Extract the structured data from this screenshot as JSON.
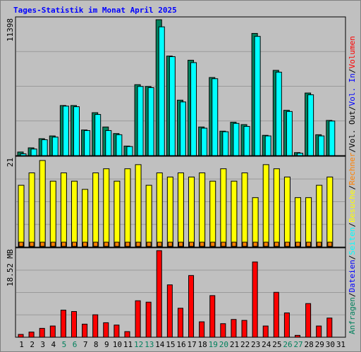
{
  "title": "Tages-Statistik im Monat April 2025",
  "colors": {
    "background": "#c0c0c0",
    "panel": "#c0c0c0",
    "title": "#0000ff",
    "hits": "#00805c",
    "files": "#0000ff",
    "pages": "#00ffff",
    "visits": "#ffff00",
    "sites": "#ff8000",
    "kbytes": "#ff0000",
    "label_weekday": "#000000",
    "label_weekend": "#00805c"
  },
  "right_labels": {
    "top": [
      {
        "text": "Anfragen",
        "color": "#00805c"
      },
      {
        "text": "/",
        "color": "#000000"
      },
      {
        "text": "Dateien",
        "color": "#0000ff"
      },
      {
        "text": "/",
        "color": "#000000"
      },
      {
        "text": "Seiten",
        "color": "#00ffff"
      },
      {
        "text": "/",
        "color": "#000000"
      },
      {
        "text": "Besuche",
        "color": "#ffff00"
      },
      {
        "text": "/",
        "color": "#000000"
      },
      {
        "text": "Rechner",
        "color": "#ff8000"
      },
      {
        "text": "/",
        "color": "#000000"
      },
      {
        "text": "Vol. Out",
        "color": "#000000"
      },
      {
        "text": "/",
        "color": "#000000"
      },
      {
        "text": "Vol. In",
        "color": "#0000ff"
      },
      {
        "text": "/",
        "color": "#000000"
      },
      {
        "text": "Volumen",
        "color": "#ff0000"
      }
    ]
  },
  "chart_data": [
    {
      "type": "bar",
      "panel": "requests",
      "ymax_label": "11398",
      "ymax": 11398,
      "categories": [
        "1",
        "2",
        "3",
        "4",
        "5",
        "6",
        "7",
        "8",
        "9",
        "10",
        "11",
        "12",
        "13",
        "14",
        "15",
        "16",
        "17",
        "18",
        "19",
        "20",
        "21",
        "22",
        "23",
        "24",
        "25",
        "26",
        "27",
        "28",
        "29",
        "30",
        "31"
      ],
      "series": [
        {
          "name": "Anfragen",
          "values": [
            300,
            650,
            1420,
            1650,
            4200,
            4200,
            2150,
            3600,
            2400,
            1850,
            800,
            5950,
            5800,
            11398,
            8350,
            4650,
            8000,
            2400,
            6550,
            2050,
            2800,
            2600,
            10250,
            1700,
            7150,
            3800,
            250,
            5250,
            1750,
            2950,
            0
          ]
        },
        {
          "name": "Dateien",
          "values": [
            150,
            550,
            1330,
            1550,
            4150,
            4100,
            2100,
            3450,
            2100,
            1750,
            760,
            5800,
            5700,
            10800,
            8300,
            4500,
            7800,
            2300,
            6450,
            2000,
            2700,
            2450,
            10000,
            1650,
            7000,
            3700,
            200,
            5100,
            1650,
            2900,
            0
          ]
        }
      ]
    },
    {
      "type": "bar",
      "panel": "visits",
      "ymax_label": "21",
      "ymax": 21,
      "categories": [
        "1",
        "2",
        "3",
        "4",
        "5",
        "6",
        "7",
        "8",
        "9",
        "10",
        "11",
        "12",
        "13",
        "14",
        "15",
        "16",
        "17",
        "18",
        "19",
        "20",
        "21",
        "22",
        "23",
        "24",
        "25",
        "26",
        "27",
        "28",
        "29",
        "30",
        "31"
      ],
      "series": [
        {
          "name": "Besuche",
          "values": [
            15,
            18,
            21,
            16,
            18,
            16,
            14,
            18,
            19,
            16,
            19,
            20,
            15,
            18,
            17,
            18,
            17,
            18,
            16,
            19,
            16,
            18,
            12,
            20,
            19,
            17,
            12,
            12,
            15,
            17,
            0
          ]
        },
        {
          "name": "Rechner",
          "values": [
            1,
            1,
            1,
            1,
            1,
            1,
            1,
            1,
            1,
            1,
            1,
            1,
            1,
            1,
            1,
            1,
            1,
            1,
            1,
            1,
            1,
            1,
            1,
            1,
            1,
            1,
            1,
            1,
            1,
            1,
            0
          ]
        }
      ]
    },
    {
      "type": "bar",
      "panel": "volume",
      "ymax_label": "18.52 MB",
      "ymax": 18.52,
      "categories": [
        "1",
        "2",
        "3",
        "4",
        "5",
        "6",
        "7",
        "8",
        "9",
        "10",
        "11",
        "12",
        "13",
        "14",
        "15",
        "16",
        "17",
        "18",
        "19",
        "20",
        "21",
        "22",
        "23",
        "24",
        "25",
        "26",
        "27",
        "28",
        "29",
        "30",
        "31"
      ],
      "series": [
        {
          "name": "Volumen",
          "values": [
            0.6,
            1.1,
            1.9,
            2.4,
            5.8,
            5.5,
            2.8,
            4.8,
            3.1,
            2.6,
            1.2,
            7.8,
            7.5,
            18.52,
            11.2,
            6.2,
            13.2,
            3.3,
            8.9,
            2.9,
            3.8,
            3.6,
            16.1,
            2.4,
            9.6,
            5.2,
            0.4,
            7.2,
            2.4,
            4.1,
            0
          ]
        }
      ]
    }
  ],
  "weekend_days": [
    5,
    6,
    12,
    13,
    19,
    20,
    26,
    27
  ]
}
